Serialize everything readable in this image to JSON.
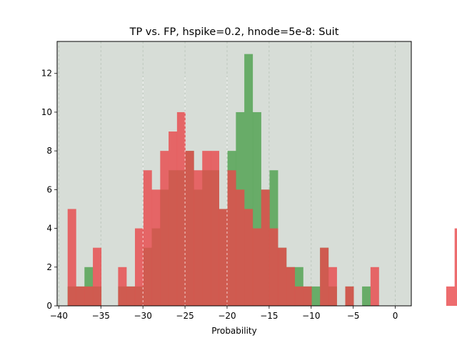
{
  "chart_data": {
    "type": "bar",
    "title": "TP vs. FP, hspike=0.2, hnode=5e-8: Suit",
    "xlabel": "Probability",
    "ylabel": "",
    "xlim": [
      -40.2,
      1.9
    ],
    "ylim": [
      0,
      13.65
    ],
    "grid": "x-dashed",
    "colors": {
      "background": "#d7ddd7",
      "tp": "#4ca04c",
      "fp": "#e8474a",
      "grid": "#b7c2b7",
      "median_lines": "#ffffff"
    },
    "x_ticks": [
      -40,
      -35,
      -30,
      -25,
      -20,
      -15,
      -10,
      -5,
      0
    ],
    "x_tick_labels": [
      "−40",
      "−35",
      "−30",
      "−25",
      "−20",
      "−15",
      "−10",
      "−5",
      "0"
    ],
    "y_ticks": [
      0,
      2,
      4,
      6,
      8,
      10,
      12
    ],
    "y_tick_labels": [
      "0",
      "2",
      "4",
      "6",
      "8",
      "10",
      "12"
    ],
    "bin_start": -38.95,
    "bin_width": 1.0,
    "series": [
      {
        "values": [
          1,
          1,
          2,
          1,
          0,
          0,
          1,
          1,
          1,
          3,
          4,
          6,
          7,
          7,
          8,
          6,
          7,
          7,
          5,
          8,
          10,
          13,
          10,
          6,
          7,
          3,
          2,
          2,
          1,
          1,
          3,
          1,
          0,
          1,
          0,
          1,
          0,
          0,
          0,
          0,
          0,
          0,
          0,
          0,
          0,
          0,
          0
        ]
      },
      {
        "values": [
          5,
          1,
          1,
          3,
          0,
          0,
          2,
          1,
          4,
          7,
          6,
          8,
          9,
          10,
          8,
          7,
          8,
          8,
          5,
          7,
          6,
          5,
          4,
          6,
          4,
          3,
          2,
          1,
          1,
          0,
          3,
          2,
          0,
          1,
          0,
          0,
          2,
          0,
          0,
          0,
          0,
          0,
          0,
          0,
          0,
          1,
          4
        ]
      }
    ],
    "median_lines_x": [
      -30,
      -25,
      -20
    ]
  }
}
